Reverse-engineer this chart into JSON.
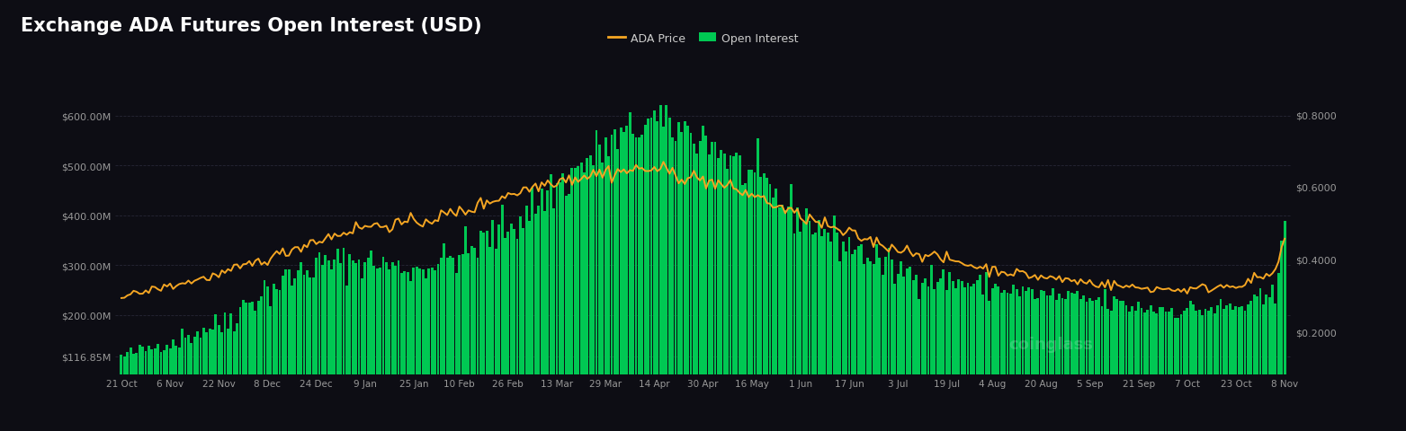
{
  "title": "Exchange ADA Futures Open Interest (USD)",
  "background_color": "#0d0d14",
  "plot_bg_color": "#0d0d14",
  "grid_color": "#2a2a3a",
  "title_color": "#ffffff",
  "title_fontsize": 15,
  "left_ytick_labels": [
    "$116.85M",
    "$200.00M",
    "$300.00M",
    "$400.00M",
    "$500.00M",
    "$600.00M"
  ],
  "left_ytick_vals": [
    116.85,
    200.0,
    300.0,
    400.0,
    500.0,
    600.0
  ],
  "right_ytick_labels": [
    "$0.2000",
    "$0.4000",
    "$0.6000",
    "$0.8000"
  ],
  "right_ytick_vals": [
    0.2,
    0.4,
    0.6,
    0.8
  ],
  "x_labels": [
    "21 Oct",
    "6 Nov",
    "22 Nov",
    "8 Dec",
    "24 Dec",
    "9 Jan",
    "25 Jan",
    "10 Feb",
    "26 Feb",
    "13 Mar",
    "29 Mar",
    "14 Apr",
    "30 Apr",
    "16 May",
    "1 Jun",
    "17 Jun",
    "3 Jul",
    "19 Jul",
    "4 Aug",
    "20 Aug",
    "5 Sep",
    "21 Sep",
    "7 Oct",
    "23 Oct",
    "8 Nov"
  ],
  "bar_color": "#00c853",
  "line_color": "#f5a623",
  "legend_ada_color": "#f5a623",
  "legend_oi_color": "#00c853",
  "legend_ada_label": "ADA Price",
  "legend_oi_label": "Open Interest",
  "watermark_text": "coinglass",
  "watermark_color": "#ffffff",
  "watermark_alpha": 0.18,
  "ylim_left": [
    80.0,
    660.0
  ],
  "ylim_right": [
    0.08,
    0.88
  ]
}
